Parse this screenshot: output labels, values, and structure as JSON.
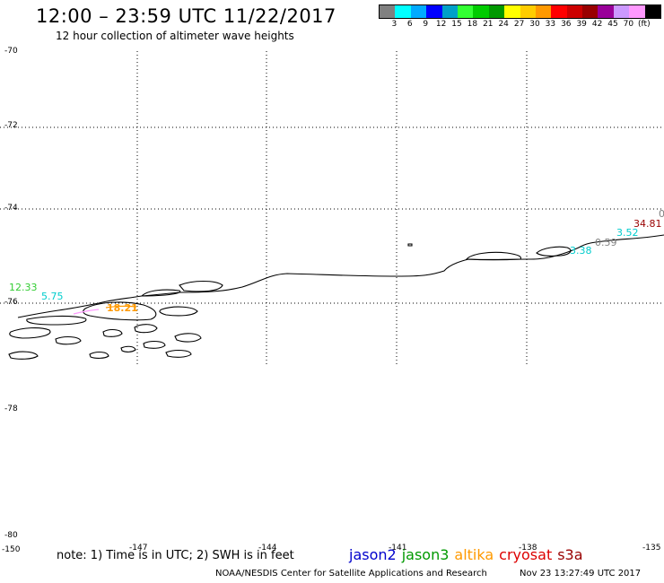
{
  "header": {
    "title": "12:00 – 23:59 UTC 11/22/2017",
    "subtitle": "12 hour collection of altimeter wave heights"
  },
  "legend": {
    "colors": [
      "#808080",
      "#00ffff",
      "#00aaff",
      "#0000ff",
      "#00a0c8",
      "#33ff33",
      "#00cc00",
      "#009900",
      "#ffff00",
      "#ffcc00",
      "#ff9900",
      "#ff0000",
      "#cc0000",
      "#990000",
      "#990099",
      "#cc99ff",
      "#ff99ff",
      "#000000"
    ],
    "labels": [
      "3",
      "6",
      "9",
      "12",
      "15",
      "18",
      "21",
      "24",
      "27",
      "30",
      "33",
      "36",
      "39",
      "42",
      "45",
      "70",
      "(ft)"
    ]
  },
  "axes": {
    "lat_labels": [
      "-70",
      "-72",
      "-74",
      "-76",
      "-78",
      "-80"
    ],
    "lon_labels": [
      "-150",
      "-147",
      "-144",
      "-141",
      "-138",
      "-135"
    ]
  },
  "wave_heights": [
    {
      "value": "12.33",
      "color": "#33cc33"
    },
    {
      "value": "5.75",
      "color": "#00cccc"
    },
    {
      "value": "18.21",
      "color": "#ff9900"
    },
    {
      "value": "3.38",
      "color": "#00cccc"
    },
    {
      "value": "0.59",
      "color": "#808080"
    },
    {
      "value": "3.52",
      "color": "#00cccc"
    },
    {
      "value": "34.81",
      "color": "#990000"
    },
    {
      "value": "0",
      "color": "#808080"
    }
  ],
  "note": "note:  1) Time is in UTC;  2) SWH is in feet",
  "satellites": [
    {
      "name": "jason2",
      "color": "#0000cc"
    },
    {
      "name": "jason3",
      "color": "#009900"
    },
    {
      "name": "altika",
      "color": "#ff9900"
    },
    {
      "name": "cryosat",
      "color": "#dd0000"
    },
    {
      "name": "s3a",
      "color": "#990000"
    }
  ],
  "footer": {
    "credit": "NOAA/NESDIS Center for Satellite Applications and Research",
    "timestamp": "Nov 23 13:27:49 UTC 2017"
  }
}
